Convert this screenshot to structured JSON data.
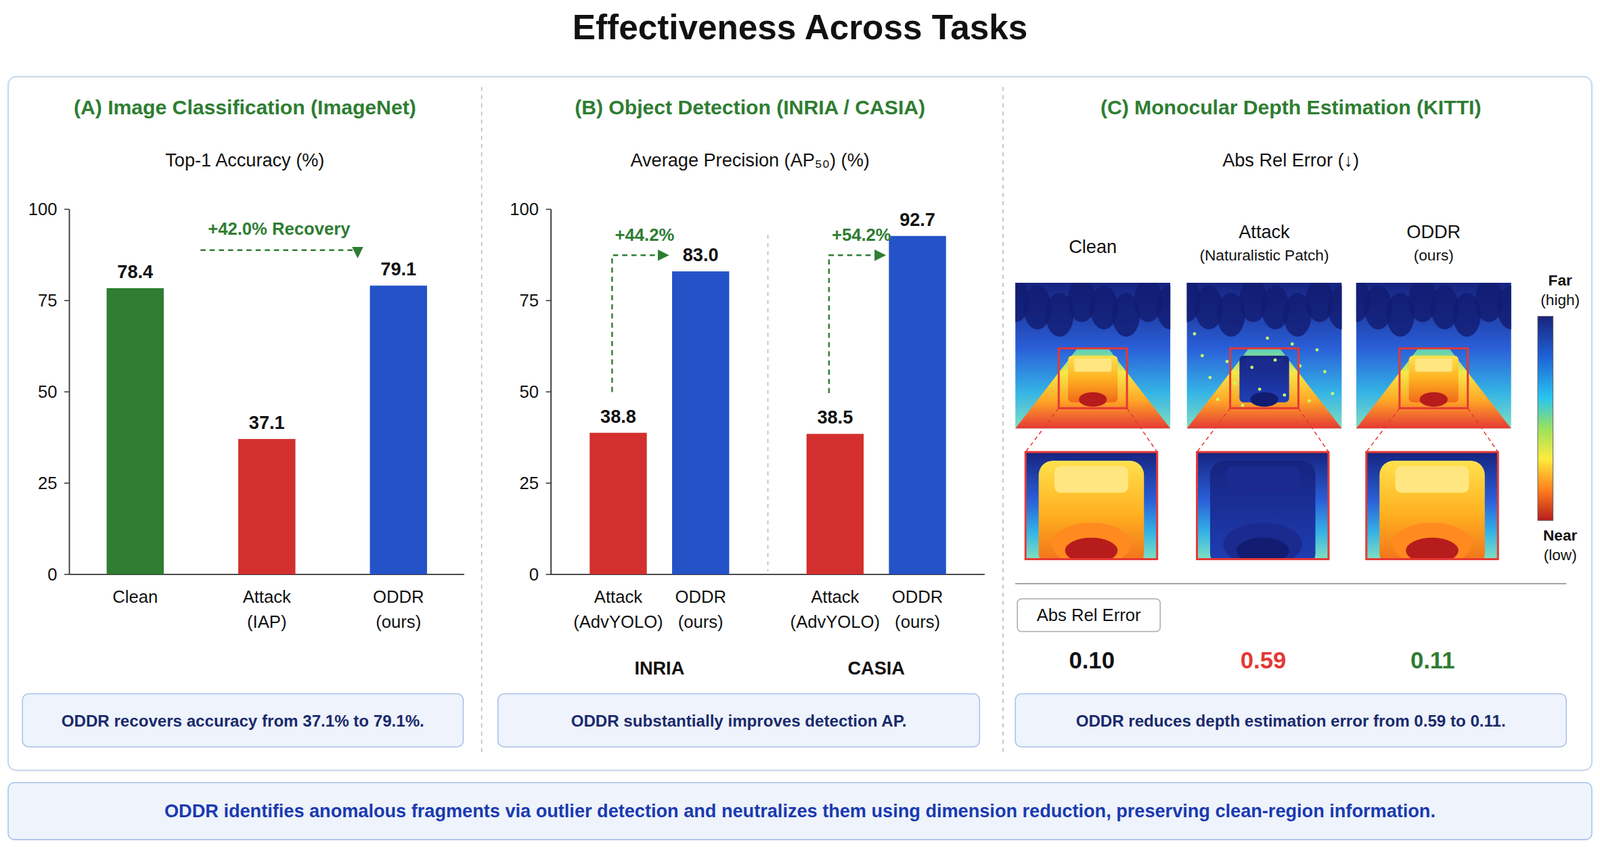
{
  "title": "Effectiveness Across Tasks",
  "footer": "ODDR identifies anomalous fragments via outlier detection and neutralizes them using dimension reduction, preserving clean-region information.",
  "chart_data": [
    {
      "type": "bar",
      "title": "(A) Image Classification (ImageNet)",
      "subtitle": "Top-1 Accuracy (%)",
      "categories": [
        "Clean",
        "Attack\n(IAP)",
        "ODDR\n(ours)"
      ],
      "values": [
        78.4,
        37.1,
        79.1
      ],
      "colors": [
        "#2e7d32",
        "#d32f2f",
        "#2453c8"
      ],
      "ylim": [
        0,
        100
      ],
      "yticks": [
        0,
        25,
        50,
        75,
        100
      ],
      "data_labels": true,
      "annotations": [
        "+42.0% Recovery"
      ],
      "caption": "ODDR recovers accuracy from 37.1% to 79.1%."
    },
    {
      "type": "bar",
      "title": "(B) Object Detection (INRIA / CASIA)",
      "subtitle": "Average Precision (AP₅₀) (%)",
      "categories": [
        "Attack\n(AdvYOLO)",
        "ODDR\n(ours)",
        "Attack\n(AdvYOLO)",
        "ODDR\n(ours)"
      ],
      "groups": [
        "INRIA",
        "CASIA"
      ],
      "values": [
        38.8,
        83.0,
        38.5,
        92.7
      ],
      "value_labels": [
        "38.8",
        "83.0",
        "38.5",
        "92.7"
      ],
      "colors": [
        "#d32f2f",
        "#2453c8",
        "#d32f2f",
        "#2453c8"
      ],
      "ylim": [
        0,
        100
      ],
      "yticks": [
        0,
        25,
        50,
        75,
        100
      ],
      "data_labels": true,
      "annotations": [
        "+44.2%",
        "+54.2%"
      ],
      "caption": "ODDR substantially improves detection AP."
    },
    {
      "type": "image",
      "title": "(C) Monocular Depth Estimation (KITTI)",
      "subtitle": "Abs Rel Error (↓)",
      "categories": [
        "Clean",
        "Attack\n(Naturalistic Patch)",
        "ODDR\n(ours)"
      ],
      "value_title": "Abs Rel Error",
      "values": [
        0.1,
        0.59,
        0.11
      ],
      "value_labels": [
        "0.10",
        "0.59",
        "0.11"
      ],
      "colors": [
        "#111111",
        "#e53935",
        "#2e7d32"
      ],
      "colorbar": {
        "high_label": "Far\n(high)",
        "low_label": "Near\n(low)"
      },
      "caption": "ODDR reduces depth estimation error from 0.59 to 0.11."
    }
  ]
}
